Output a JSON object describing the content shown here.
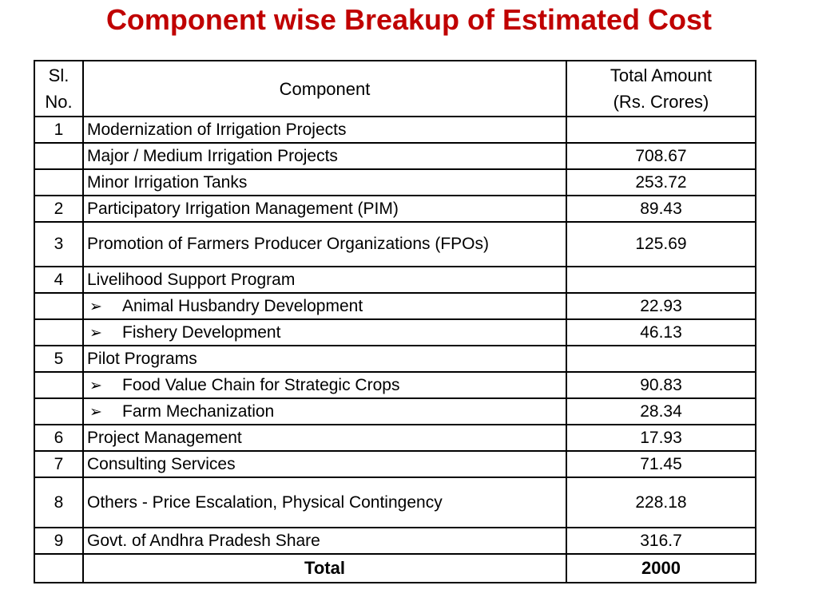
{
  "slide": {
    "title": "Component wise Breakup of Estimated Cost"
  },
  "colors": {
    "title": "#C00000",
    "border": "#000000",
    "background": "#FFFFFF",
    "text": "#000000"
  },
  "icons": {
    "bullet_glyph": "➢",
    "bullet_name": "arrowhead-bullet"
  },
  "table": {
    "headers": {
      "sl_no": "Sl.\nNo.",
      "component": "Component",
      "amount": "Total Amount\n(Rs. Crores)"
    },
    "rows": [
      {
        "sl": "1",
        "component": "Modernization of Irrigation Projects",
        "amount": ""
      },
      {
        "sl": "",
        "component": "Major / Medium Irrigation Projects",
        "amount": "708.67"
      },
      {
        "sl": "",
        "component": "Minor Irrigation Tanks",
        "amount": "253.72"
      },
      {
        "sl": "2",
        "component": "Participatory Irrigation Management (PIM)",
        "amount": "89.43"
      },
      {
        "sl": "3",
        "component": "Promotion of Farmers Producer Organizations (FPOs)",
        "amount": "125.69"
      },
      {
        "sl": "4",
        "component": "Livelihood Support Program",
        "amount": ""
      },
      {
        "sl": "",
        "bullet": "➢",
        "component": "Animal Husbandry Development",
        "amount": "22.93"
      },
      {
        "sl": "",
        "bullet": "➢",
        "component": "Fishery Development",
        "amount": "46.13"
      },
      {
        "sl": "5",
        "component": "Pilot Programs",
        "amount": ""
      },
      {
        "sl": "",
        "bullet": "➢",
        "component": "Food Value Chain for Strategic Crops",
        "amount": "90.83"
      },
      {
        "sl": "",
        "bullet": "➢",
        "component": "Farm Mechanization",
        "amount": "28.34"
      },
      {
        "sl": "6",
        "component": "Project Management",
        "amount": "17.93"
      },
      {
        "sl": "7",
        "component": "Consulting Services",
        "amount": "71.45"
      },
      {
        "sl": "8",
        "component": "Others - Price Escalation, Physical Contingency",
        "amount": "228.18"
      },
      {
        "sl": "9",
        "component": "Govt. of Andhra Pradesh Share",
        "amount": "316.7"
      },
      {
        "sl": "",
        "component": "Total",
        "amount": "2000"
      }
    ]
  },
  "chart_data": {
    "type": "table",
    "title": "Component wise Breakup of Estimated Cost",
    "columns": [
      "Sl. No.",
      "Component",
      "Total Amount (Rs. Crores)"
    ],
    "rows": [
      [
        "1",
        "Modernization of Irrigation Projects",
        null
      ],
      [
        "",
        "Major / Medium Irrigation Projects",
        708.67
      ],
      [
        "",
        "Minor Irrigation Tanks",
        253.72
      ],
      [
        "2",
        "Participatory Irrigation Management (PIM)",
        89.43
      ],
      [
        "3",
        "Promotion of Farmers Producer Organizations (FPOs)",
        125.69
      ],
      [
        "4",
        "Livelihood Support Program",
        null
      ],
      [
        "",
        "Animal Husbandry Development",
        22.93
      ],
      [
        "",
        "Fishery Development",
        46.13
      ],
      [
        "5",
        "Pilot Programs",
        null
      ],
      [
        "",
        "Food Value Chain for Strategic Crops",
        90.83
      ],
      [
        "",
        "Farm Mechanization",
        28.34
      ],
      [
        "6",
        "Project Management",
        17.93
      ],
      [
        "7",
        "Consulting Services",
        71.45
      ],
      [
        "8",
        "Others - Price Escalation, Physical Contingency",
        228.18
      ],
      [
        "9",
        "Govt. of Andhra Pradesh Share",
        316.7
      ],
      [
        "",
        "Total",
        2000
      ]
    ],
    "unit": "Rs. Crores"
  }
}
